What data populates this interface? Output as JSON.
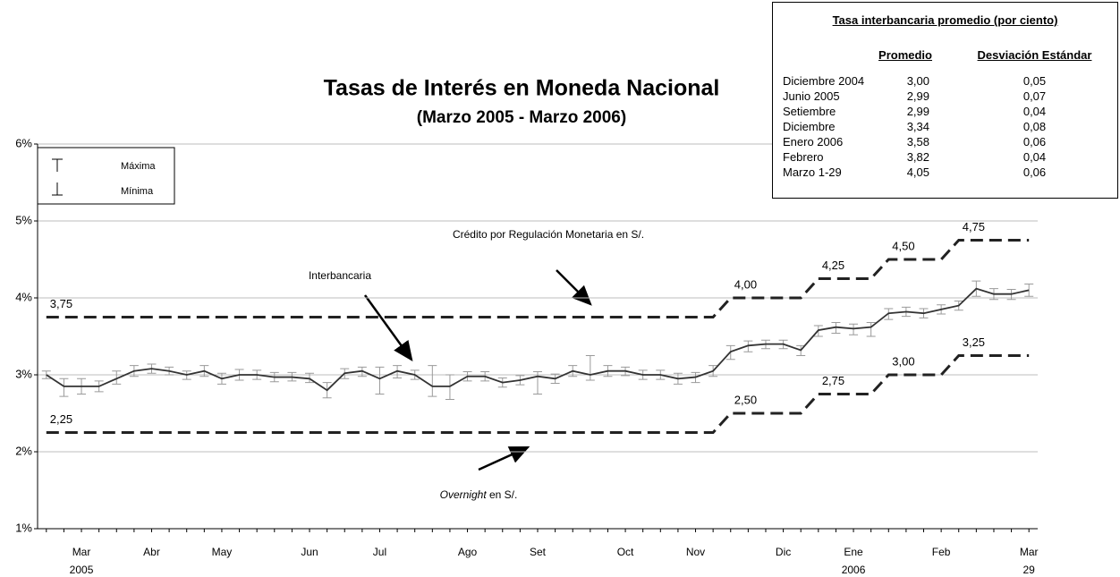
{
  "chart_data": {
    "type": "line",
    "title": "Tasas de Interés en Moneda Nacional",
    "subtitle": "(Marzo 2005 - Marzo 2006)",
    "categories": [
      null,
      null,
      "Mar 2005",
      null,
      null,
      null,
      "Abr",
      null,
      null,
      null,
      "May",
      null,
      null,
      null,
      null,
      "Jun",
      null,
      null,
      null,
      "Jul",
      null,
      null,
      null,
      null,
      "Ago",
      null,
      null,
      null,
      "Set",
      null,
      null,
      null,
      null,
      "Oct",
      null,
      null,
      null,
      "Nov",
      null,
      null,
      null,
      null,
      "Dic",
      null,
      null,
      null,
      "Ene 2006",
      null,
      null,
      null,
      null,
      "Feb",
      null,
      null,
      null,
      null,
      "Mar 29"
    ],
    "ylim": [
      1,
      6
    ],
    "yticks": [
      {
        "value": 1,
        "label": "1%"
      },
      {
        "value": 2,
        "label": "2%"
      },
      {
        "value": 3,
        "label": "3%"
      },
      {
        "value": 4,
        "label": "4%"
      },
      {
        "value": 5,
        "label": "5%"
      },
      {
        "value": 6,
        "label": "6%"
      }
    ],
    "grid": true,
    "legend": {
      "max": "Máxima",
      "min": "Mínima"
    },
    "series": [
      {
        "name": "Interbancaria",
        "color": "#333333",
        "whisker_color": "#9a9a9a",
        "values": [
          3.0,
          2.85,
          2.85,
          2.85,
          2.95,
          3.05,
          3.08,
          3.05,
          3.0,
          3.05,
          2.95,
          3.0,
          3.0,
          2.97,
          2.97,
          2.95,
          2.8,
          3.02,
          3.05,
          2.95,
          3.05,
          3.0,
          2.85,
          2.85,
          2.98,
          2.98,
          2.9,
          2.93,
          2.98,
          2.95,
          3.05,
          3.0,
          3.05,
          3.05,
          3.0,
          3.0,
          2.95,
          2.97,
          3.05,
          3.3,
          3.38,
          3.4,
          3.4,
          3.32,
          3.58,
          3.62,
          3.6,
          3.62,
          3.8,
          3.82,
          3.8,
          3.85,
          3.9,
          4.12,
          4.05,
          4.05,
          4.1
        ],
        "max": [
          3.05,
          2.95,
          2.95,
          2.92,
          3.05,
          3.12,
          3.14,
          3.1,
          3.05,
          3.12,
          3.02,
          3.07,
          3.06,
          3.03,
          3.03,
          3.02,
          2.9,
          3.08,
          3.1,
          3.1,
          3.12,
          3.06,
          3.12,
          3.0,
          3.04,
          3.04,
          2.96,
          2.99,
          3.04,
          3.01,
          3.12,
          3.25,
          3.12,
          3.1,
          3.06,
          3.06,
          3.02,
          3.03,
          3.12,
          3.38,
          3.44,
          3.45,
          3.45,
          3.38,
          3.64,
          3.68,
          3.66,
          3.68,
          3.86,
          3.88,
          3.86,
          3.91,
          3.96,
          4.22,
          4.12,
          4.11,
          4.18
        ],
        "min": [
          2.95,
          2.72,
          2.75,
          2.78,
          2.88,
          2.98,
          3.02,
          3.0,
          2.94,
          2.98,
          2.88,
          2.93,
          2.94,
          2.91,
          2.92,
          2.9,
          2.7,
          2.95,
          2.98,
          2.75,
          2.96,
          2.94,
          2.72,
          2.68,
          2.92,
          2.92,
          2.84,
          2.87,
          2.75,
          2.89,
          2.98,
          2.93,
          2.98,
          2.99,
          2.94,
          2.94,
          2.88,
          2.9,
          2.98,
          3.2,
          3.3,
          3.34,
          3.34,
          3.25,
          3.5,
          3.54,
          3.52,
          3.5,
          3.72,
          3.76,
          3.74,
          3.79,
          3.84,
          4.02,
          3.98,
          3.98,
          4.02
        ]
      },
      {
        "name": "Crédito por Regulación Monetaria en S/.",
        "color": "#222222",
        "dashed": true,
        "values": [
          3.75,
          3.75,
          3.75,
          3.75,
          3.75,
          3.75,
          3.75,
          3.75,
          3.75,
          3.75,
          3.75,
          3.75,
          3.75,
          3.75,
          3.75,
          3.75,
          3.75,
          3.75,
          3.75,
          3.75,
          3.75,
          3.75,
          3.75,
          3.75,
          3.75,
          3.75,
          3.75,
          3.75,
          3.75,
          3.75,
          3.75,
          3.75,
          3.75,
          3.75,
          3.75,
          3.75,
          3.75,
          3.75,
          3.75,
          4.0,
          4.0,
          4.0,
          4.0,
          4.0,
          4.25,
          4.25,
          4.25,
          4.25,
          4.5,
          4.5,
          4.5,
          4.5,
          4.75,
          4.75,
          4.75,
          4.75,
          4.75
        ],
        "value_labels": [
          "3,75",
          null,
          null,
          null,
          null,
          null,
          null,
          null,
          null,
          null,
          null,
          null,
          null,
          null,
          null,
          null,
          null,
          null,
          null,
          null,
          null,
          null,
          null,
          null,
          null,
          null,
          null,
          null,
          null,
          null,
          null,
          null,
          null,
          null,
          null,
          null,
          null,
          null,
          null,
          "4,00",
          null,
          null,
          null,
          null,
          "4,25",
          null,
          null,
          null,
          "4,50",
          null,
          null,
          null,
          "4,75",
          null,
          null,
          null,
          null
        ]
      },
      {
        "color": "#222222",
        "dashed": true,
        "values": [
          2.25,
          2.25,
          2.25,
          2.25,
          2.25,
          2.25,
          2.25,
          2.25,
          2.25,
          2.25,
          2.25,
          2.25,
          2.25,
          2.25,
          2.25,
          2.25,
          2.25,
          2.25,
          2.25,
          2.25,
          2.25,
          2.25,
          2.25,
          2.25,
          2.25,
          2.25,
          2.25,
          2.25,
          2.25,
          2.25,
          2.25,
          2.25,
          2.25,
          2.25,
          2.25,
          2.25,
          2.25,
          2.25,
          2.25,
          2.5,
          2.5,
          2.5,
          2.5,
          2.5,
          2.75,
          2.75,
          2.75,
          2.75,
          3.0,
          3.0,
          3.0,
          3.0,
          3.25,
          3.25,
          3.25,
          3.25,
          3.25
        ],
        "value_labels": [
          "2,25",
          null,
          null,
          null,
          null,
          null,
          null,
          null,
          null,
          null,
          null,
          null,
          null,
          null,
          null,
          null,
          null,
          null,
          null,
          null,
          null,
          null,
          null,
          null,
          null,
          null,
          null,
          null,
          null,
          null,
          null,
          null,
          null,
          null,
          null,
          null,
          null,
          null,
          null,
          "2,50",
          null,
          null,
          null,
          null,
          "2,75",
          null,
          null,
          null,
          "3,00",
          null,
          null,
          null,
          "3,25",
          null,
          null,
          null,
          null
        ]
      }
    ],
    "annotations": [
      {
        "italic": "Overnight",
        "text": "en S/."
      }
    ]
  },
  "table": {
    "title": "Tasa interbancaria promedio (por ciento)",
    "columns": [
      "Promedio",
      "Desviación Estándar"
    ],
    "rows": [
      [
        "Diciembre 2004",
        "3,00",
        "0,05"
      ],
      [
        "Junio 2005",
        "2,99",
        "0,07"
      ],
      [
        "Setiembre",
        "2,99",
        "0,04"
      ],
      [
        "Diciembre",
        "3,34",
        "0,08"
      ],
      [
        "Enero 2006",
        "3,58",
        "0,06"
      ],
      [
        "Febrero",
        "3,82",
        "0,04"
      ],
      [
        "Marzo 1-29",
        "4,05",
        "0,06"
      ]
    ]
  }
}
